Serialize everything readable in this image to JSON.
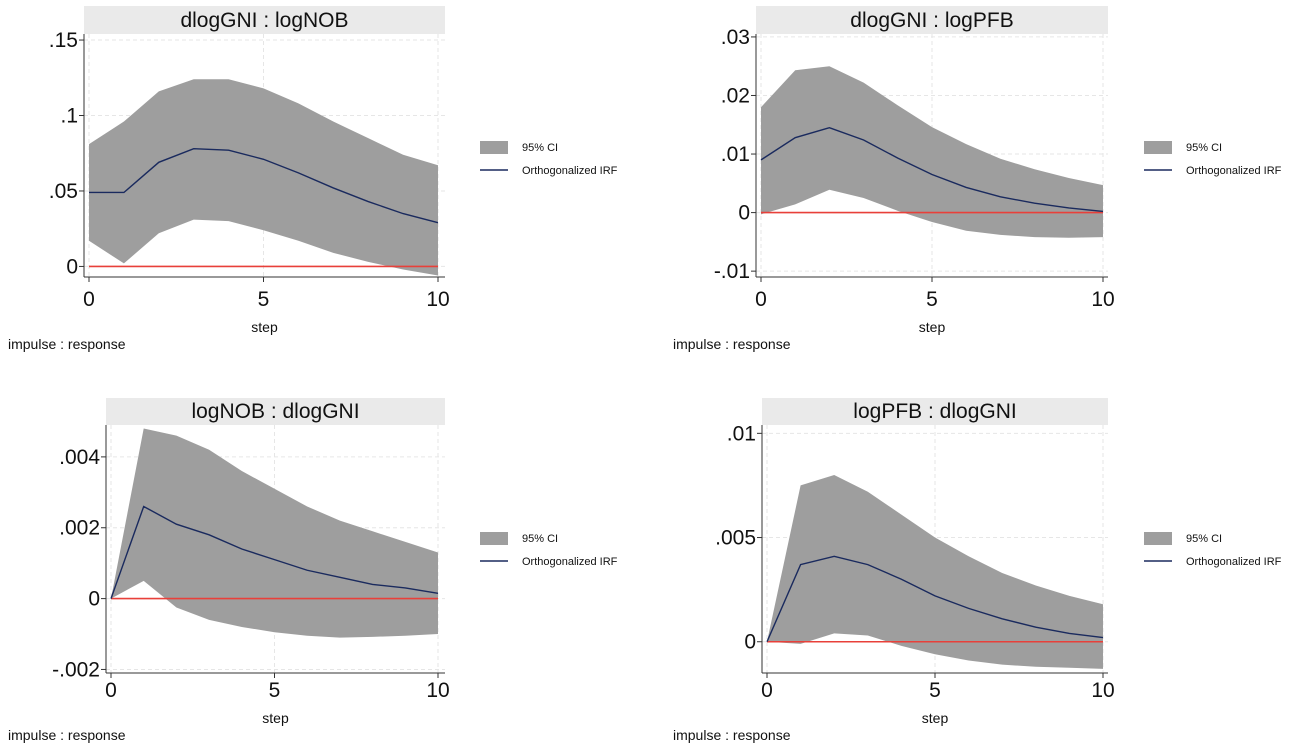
{
  "colors": {
    "ci_fill": "#9e9e9e",
    "irf_line": "#1a2a5e",
    "zero_line": "#e8403a",
    "header_bg": "#eaeaea",
    "grid": "#e6e6e6",
    "axis": "#333333"
  },
  "chart_data": [
    {
      "type": "area",
      "title": "dlogGNI : logNOB",
      "xlabel": "step",
      "note": "impulse : response",
      "x": [
        0,
        1,
        2,
        3,
        4,
        5,
        6,
        7,
        8,
        9,
        10
      ],
      "xticks": [
        0,
        5,
        10
      ],
      "ylim": [
        -0.007,
        0.154
      ],
      "yticks": [
        0,
        0.05,
        0.1,
        0.15
      ],
      "ytick_labels": [
        "0",
        ".05",
        ".1",
        ".15"
      ],
      "grid": true,
      "legend": [
        "95% CI",
        "Orthogonalized IRF"
      ],
      "legend_position": "right",
      "series": [
        {
          "name": "Orthogonalized IRF",
          "values": [
            0.049,
            0.049,
            0.069,
            0.078,
            0.077,
            0.071,
            0.062,
            0.052,
            0.043,
            0.035,
            0.029
          ]
        },
        {
          "name": "95% CI",
          "lower": [
            0.017,
            0.002,
            0.022,
            0.031,
            0.03,
            0.024,
            0.017,
            0.009,
            0.003,
            -0.002,
            -0.006
          ],
          "upper": [
            0.081,
            0.096,
            0.116,
            0.124,
            0.124,
            0.118,
            0.108,
            0.096,
            0.085,
            0.074,
            0.067
          ]
        }
      ]
    },
    {
      "type": "area",
      "title": "dlogGNI : logPFB",
      "xlabel": "step",
      "note": "impulse : response",
      "x": [
        0,
        1,
        2,
        3,
        4,
        5,
        6,
        7,
        8,
        9,
        10
      ],
      "xticks": [
        0,
        5,
        10
      ],
      "ylim": [
        -0.011,
        0.0305
      ],
      "yticks": [
        -0.01,
        0,
        0.01,
        0.02,
        0.03
      ],
      "ytick_labels": [
        "-.01",
        "0",
        ".01",
        ".02",
        ".03"
      ],
      "grid": true,
      "legend": [
        "95% CI",
        "Orthogonalized IRF"
      ],
      "legend_position": "right",
      "series": [
        {
          "name": "Orthogonalized IRF",
          "values": [
            0.009,
            0.0128,
            0.0145,
            0.0124,
            0.0093,
            0.0065,
            0.0043,
            0.0027,
            0.0016,
            0.0008,
            0.0002
          ]
        },
        {
          "name": "95% CI",
          "lower": [
            -0.0003,
            0.0014,
            0.0039,
            0.0025,
            0.0003,
            -0.0016,
            -0.0031,
            -0.0038,
            -0.0042,
            -0.0043,
            -0.0042
          ],
          "upper": [
            0.018,
            0.0243,
            0.025,
            0.0222,
            0.0183,
            0.0146,
            0.0117,
            0.0092,
            0.0074,
            0.0059,
            0.0047
          ]
        }
      ]
    },
    {
      "type": "area",
      "title": "logNOB : dlogGNI",
      "xlabel": "step",
      "note": "impulse : response",
      "x": [
        0,
        1,
        2,
        3,
        4,
        5,
        6,
        7,
        8,
        9,
        10
      ],
      "xticks": [
        0,
        5,
        10
      ],
      "ylim": [
        -0.0021,
        0.0049
      ],
      "yticks": [
        -0.002,
        0,
        0.002,
        0.004
      ],
      "ytick_labels": [
        "-.002",
        "0",
        ".002",
        ".004"
      ],
      "grid": true,
      "legend": [
        "95% CI",
        "Orthogonalized IRF"
      ],
      "legend_position": "right",
      "series": [
        {
          "name": "Orthogonalized IRF",
          "values": [
            0,
            0.0026,
            0.0021,
            0.0018,
            0.0014,
            0.0011,
            0.0008,
            0.0006,
            0.0004,
            0.0003,
            0.00015
          ]
        },
        {
          "name": "95% CI",
          "lower": [
            0,
            0.0005,
            -0.00025,
            -0.0006,
            -0.0008,
            -0.00095,
            -0.00105,
            -0.0011,
            -0.00108,
            -0.00105,
            -0.001
          ],
          "upper": [
            0,
            0.0048,
            0.0046,
            0.0042,
            0.0036,
            0.0031,
            0.0026,
            0.0022,
            0.0019,
            0.0016,
            0.0013
          ]
        }
      ]
    },
    {
      "type": "area",
      "title": "logPFB : dlogGNI",
      "xlabel": "step",
      "note": "impulse : response",
      "x": [
        0,
        1,
        2,
        3,
        4,
        5,
        6,
        7,
        8,
        9,
        10
      ],
      "xticks": [
        0,
        5,
        10
      ],
      "ylim": [
        -0.0015,
        0.0104
      ],
      "yticks": [
        0,
        0.005,
        0.01
      ],
      "ytick_labels": [
        "0",
        ".005",
        ".01"
      ],
      "grid": true,
      "legend": [
        "95% CI",
        "Orthogonalized IRF"
      ],
      "legend_position": "right",
      "series": [
        {
          "name": "Orthogonalized IRF",
          "values": [
            0,
            0.0037,
            0.0041,
            0.0037,
            0.003,
            0.0022,
            0.0016,
            0.0011,
            0.0007,
            0.0004,
            0.0002
          ]
        },
        {
          "name": "95% CI",
          "lower": [
            0,
            -0.0001,
            0.0004,
            0.0003,
            -0.0002,
            -0.0006,
            -0.0009,
            -0.0011,
            -0.0012,
            -0.00125,
            -0.0013
          ],
          "upper": [
            0,
            0.0075,
            0.008,
            0.0072,
            0.0061,
            0.005,
            0.0041,
            0.0033,
            0.0027,
            0.0022,
            0.0018
          ]
        }
      ]
    }
  ]
}
